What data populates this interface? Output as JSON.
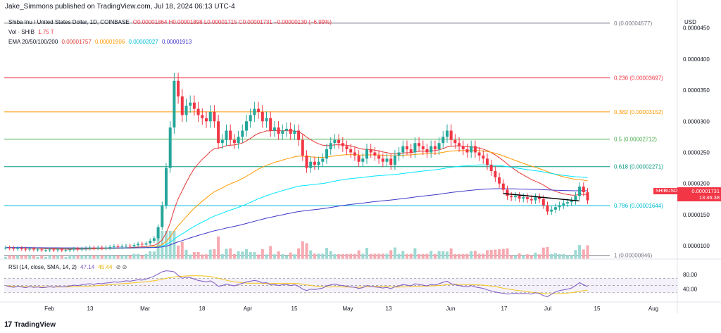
{
  "header": {
    "publisher": "Jake_Simmons published on TradingView.com, Jul 18, 2024 06:13 UTC-4"
  },
  "legend": {
    "symbol": "Shiba Inu / United States Dollar, 1D, COINBASE",
    "ohlc": "O0.00001864 H0.00001898 L0.00001715 C0.00001731 −0.00000130 (−6.99%)",
    "vol_label": "Vol · SHIB",
    "vol_value": "1.75 T",
    "ema_label": "EMA 20/50/100/200",
    "ema20": "0.00001757",
    "ema50": "0.00001906",
    "ema100": "0.00002027",
    "ema200": "0.00001913"
  },
  "rsi_legend": {
    "label": "RSI (14, close, SMA, 14, 2)",
    "rsi": "47.14",
    "sma": "45.44"
  },
  "axis": {
    "currency": "USD",
    "price_ticks": [
      "0.0000450",
      "0.0000400",
      "0.0000350",
      "0.0000300",
      "0.0000250",
      "0.0000200",
      "0.0000150",
      "0.0000100"
    ],
    "rsi_ticks": [
      "80.00",
      "40.00"
    ],
    "x_labels": [
      "Feb",
      "13",
      "Mar",
      "18",
      "Apr",
      "15",
      "May",
      "13",
      "Jun",
      "17",
      "Jul",
      "15",
      "Aug"
    ]
  },
  "price_tag": {
    "symbol": "SHIBUSD",
    "price": "0.00001731",
    "countdown": "13:46:38"
  },
  "footer": {
    "brand": "TradingView"
  },
  "colors": {
    "up": "#26a69a",
    "down": "#f23645",
    "ema20": "#e53935",
    "ema50": "#ff9800",
    "ema100": "#00e5ff",
    "ema200": "#3f36c9",
    "rsi": "#7e57c2",
    "rsi_sma": "#f5c518"
  },
  "chart_data": {
    "type": "candlestick",
    "title": "Shiba Inu / United States Dollar, 1D, COINBASE",
    "ylabel": "USD",
    "ylim": [
      8.2e-06,
      4.7e-05
    ],
    "fib_levels": [
      {
        "label": "0 (0.00004577)",
        "value": 4.577e-05,
        "color": "#787b86"
      },
      {
        "label": "0.236 (0.00003697)",
        "value": 3.697e-05,
        "color": "#f23645"
      },
      {
        "label": "0.382 (0.00003152)",
        "value": 3.152e-05,
        "color": "#ff9800"
      },
      {
        "label": "0.5 (0.00002712)",
        "value": 2.712e-05,
        "color": "#4caf50"
      },
      {
        "label": "0.618 (0.00002271)",
        "value": 2.271e-05,
        "color": "#089981"
      },
      {
        "label": "0.786 (0.00001644)",
        "value": 1.644e-05,
        "color": "#00bcd4"
      },
      {
        "label": "1 (0.00000846)",
        "value": 8.46e-06,
        "color": "#787b86"
      }
    ],
    "trendline": [
      [
        1.84e-05,
        1.72e-05
      ]
    ],
    "closes": [
      9.7e-06,
      9.6e-06,
      9.5e-06,
      9.6e-06,
      9.5e-06,
      9.4e-06,
      9.5e-06,
      9.4e-06,
      9.4e-06,
      9.3e-06,
      9.3e-06,
      9.4e-06,
      9.3e-06,
      9.4e-06,
      9.3e-06,
      9.3e-06,
      9.4e-06,
      9.5e-06,
      9.4e-06,
      9.5e-06,
      9.6e-06,
      9.7e-06,
      9.6e-06,
      9.7e-06,
      9.6e-06,
      9.7e-06,
      9.8e-06,
      9.9e-06,
      9.8e-06,
      9.9e-06,
      1e-05,
      9.9e-06,
      1.01e-05,
      1.03e-05,
      1.02e-05,
      1.04e-05,
      1.08e-05,
      1.12e-05,
      1.3e-05,
      1.65e-05,
      2.25e-05,
      2.9e-05,
      3.65e-05,
      3.4e-05,
      3.1e-05,
      3.25e-05,
      3.3e-05,
      3.2e-05,
      3.1e-05,
      3.05e-05,
      3e-05,
      3.15e-05,
      3e-05,
      2.65e-05,
      2.7e-05,
      2.85e-05,
      2.7e-05,
      2.65e-05,
      2.75e-05,
      2.85e-05,
      3e-05,
      3.1e-05,
      3.2e-05,
      3.15e-05,
      3e-05,
      3.05e-05,
      2.85e-05,
      2.9e-05,
      2.8e-05,
      2.85e-05,
      2.88e-05,
      2.8e-05,
      2.85e-05,
      2.7e-05,
      2.45e-05,
      2.25e-05,
      2.35e-05,
      2.3e-05,
      2.35e-05,
      2.4e-05,
      2.55e-05,
      2.65e-05,
      2.7e-05,
      2.65e-05,
      2.6e-05,
      2.55e-05,
      2.5e-05,
      2.45e-05,
      2.35e-05,
      2.4e-05,
      2.55e-05,
      2.5e-05,
      2.45e-05,
      2.4e-05,
      2.35e-05,
      2.4e-05,
      2.3e-05,
      2.45e-05,
      2.5e-05,
      2.6e-05,
      2.55e-05,
      2.5e-05,
      2.65e-05,
      2.6e-05,
      2.55e-05,
      2.5e-05,
      2.6e-05,
      2.55e-05,
      2.65e-05,
      2.75e-05,
      2.85e-05,
      2.7e-05,
      2.65e-05,
      2.6e-05,
      2.55e-05,
      2.5e-05,
      2.6e-05,
      2.5e-05,
      2.45e-05,
      2.4e-05,
      2.3e-05,
      2.2e-05,
      2.1e-05,
      2e-05,
      1.9e-05,
      1.8e-05,
      1.78e-05,
      1.8e-05,
      1.76e-05,
      1.78e-05,
      1.75e-05,
      1.73e-05,
      1.78e-05,
      1.75e-05,
      1.65e-05,
      1.55e-05,
      1.58e-05,
      1.62e-05,
      1.65e-05,
      1.68e-05,
      1.7e-05,
      1.72e-05,
      1.8e-05,
      1.95e-05,
      1.86e-05,
      1.73e-05
    ],
    "rsi_values": [
      50,
      47,
      45,
      48,
      46,
      44,
      47,
      45,
      46,
      44,
      45,
      47,
      45,
      48,
      46,
      47,
      49,
      51,
      50,
      52,
      54,
      55,
      53,
      56,
      55,
      57,
      58,
      60,
      59,
      61,
      63,
      62,
      64,
      66,
      65,
      68,
      72,
      76,
      82,
      88,
      91,
      90,
      88,
      78,
      70,
      73,
      72,
      68,
      64,
      62,
      60,
      63,
      57,
      48,
      50,
      54,
      51,
      49,
      53,
      56,
      60,
      62,
      64,
      62,
      57,
      58,
      52,
      53,
      50,
      52,
      53,
      50,
      52,
      48,
      40,
      36,
      40,
      39,
      41,
      43,
      49,
      52,
      54,
      51,
      50,
      48,
      46,
      45,
      42,
      44,
      50,
      48,
      46,
      45,
      43,
      45,
      41,
      47,
      49,
      53,
      51,
      49,
      55,
      53,
      51,
      49,
      53,
      51,
      55,
      59,
      62,
      55,
      52,
      50,
      48,
      46,
      50,
      46,
      44,
      42,
      38,
      35,
      32,
      30,
      28,
      26,
      27,
      29,
      27,
      28,
      27,
      26,
      30,
      28,
      22,
      19,
      26,
      32,
      36,
      38,
      40,
      43,
      50,
      58,
      52,
      47
    ]
  }
}
